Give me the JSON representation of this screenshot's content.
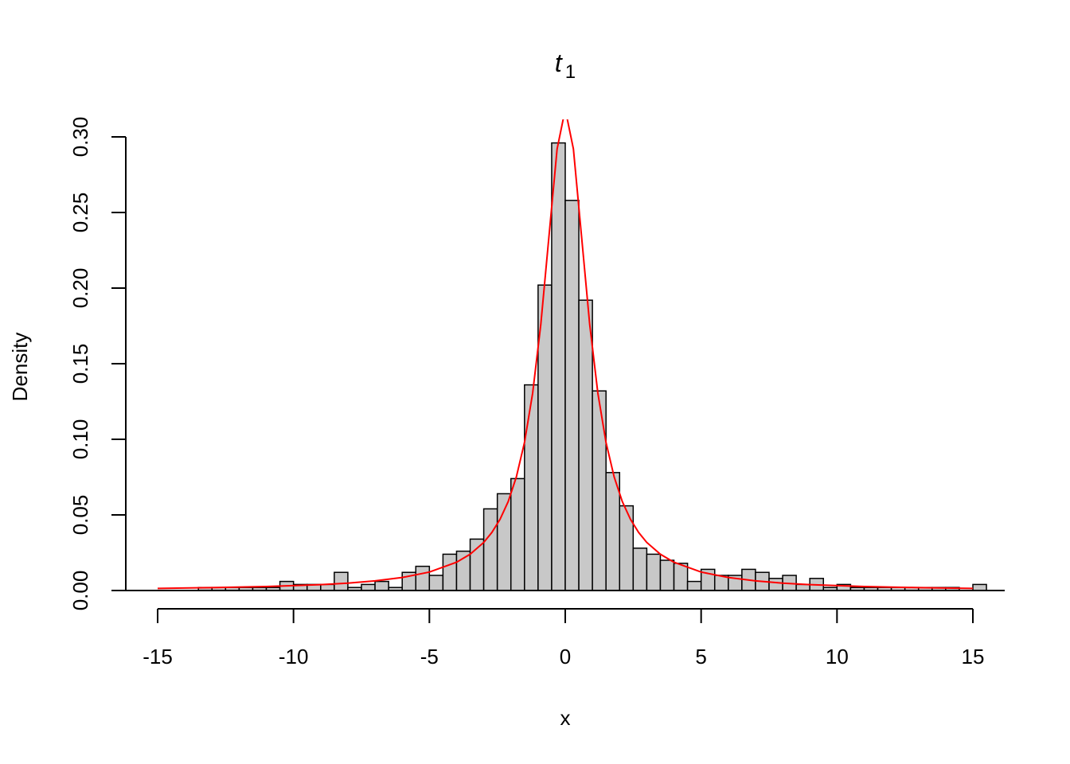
{
  "chart_data": {
    "type": "histogram",
    "title": "t",
    "title_subscript": "1",
    "x_label": "x",
    "y_label": "Density",
    "bins": [
      -15,
      -14.5,
      -14,
      -13.5,
      -13,
      -12.5,
      -12,
      -11.5,
      -11,
      -10.5,
      -10,
      -9.5,
      -9,
      -8.5,
      -8,
      -7.5,
      -7,
      -6.5,
      -6,
      -5.5,
      -5,
      -4.5,
      -4,
      -3.5,
      -3,
      -2.5,
      -2,
      -1.5,
      -1,
      -0.5,
      0,
      0.5,
      1,
      1.5,
      2,
      2.5,
      3,
      3.5,
      4,
      4.5,
      5,
      5.5,
      6,
      6.5,
      7,
      7.5,
      8,
      8.5,
      9,
      9.5,
      10,
      10.5,
      11,
      11.5,
      12,
      12.5,
      13,
      13.5,
      14,
      14.5,
      15,
      15.5
    ],
    "values": [
      0,
      0,
      0,
      0.002,
      0.002,
      0.002,
      0.002,
      0.002,
      0.002,
      0.006,
      0.004,
      0.004,
      0.004,
      0.012,
      0.002,
      0.004,
      0.006,
      0.002,
      0.012,
      0.016,
      0.01,
      0.024,
      0.026,
      0.034,
      0.054,
      0.064,
      0.074,
      0.136,
      0.202,
      0.296,
      0.258,
      0.192,
      0.132,
      0.078,
      0.056,
      0.028,
      0.024,
      0.02,
      0.018,
      0.006,
      0.014,
      0.01,
      0.01,
      0.014,
      0.012,
      0.008,
      0.01,
      0.004,
      0.008,
      0.002,
      0.004,
      0.002,
      0.002,
      0.002,
      0.002,
      0.002,
      0.002,
      0.002,
      0.002,
      0,
      0.004
    ],
    "color": "#c8c8c8",
    "curve": {
      "color": "#ff0000",
      "x": [
        -15,
        -13,
        -11,
        -9,
        -8,
        -7,
        -6,
        -5,
        -4,
        -3.5,
        -3,
        -2.7,
        -2.4,
        -2.1,
        -1.8,
        -1.5,
        -1.2,
        -0.9,
        -0.6,
        -0.3,
        0,
        0.3,
        0.6,
        0.9,
        1.2,
        1.5,
        1.8,
        2.1,
        2.4,
        2.7,
        3,
        3.5,
        4,
        5,
        6,
        7,
        8,
        9,
        11,
        13,
        15
      ],
      "values": [
        0.0014,
        0.0019,
        0.0026,
        0.0039,
        0.0049,
        0.0064,
        0.0086,
        0.0122,
        0.0187,
        0.024,
        0.0318,
        0.0384,
        0.0471,
        0.0588,
        0.0751,
        0.0979,
        0.1305,
        0.1759,
        0.2341,
        0.292,
        0.3183,
        0.292,
        0.2341,
        0.1759,
        0.1305,
        0.0979,
        0.0751,
        0.0588,
        0.0471,
        0.0384,
        0.0318,
        0.024,
        0.0187,
        0.0122,
        0.0086,
        0.0064,
        0.0049,
        0.0039,
        0.0026,
        0.0019,
        0.0014
      ]
    },
    "xlim": [
      -15,
      15
    ],
    "xticks": [
      -15,
      -10,
      -5,
      0,
      5,
      10,
      15
    ],
    "ylim": [
      0,
      0.3
    ],
    "yticks": [
      {
        "value": 0,
        "label": "0.00"
      },
      {
        "value": 0.05,
        "label": "0.05"
      },
      {
        "value": 0.1,
        "label": "0.10"
      },
      {
        "value": 0.15,
        "label": "0.15"
      },
      {
        "value": 0.2,
        "label": "0.20"
      },
      {
        "value": 0.25,
        "label": "0.25"
      },
      {
        "value": 0.3,
        "label": "0.30"
      }
    ]
  }
}
